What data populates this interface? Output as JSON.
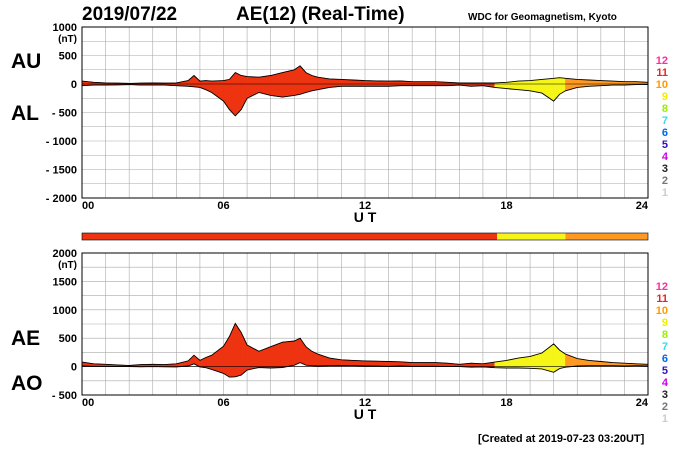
{
  "header": {
    "date": "2019/07/22",
    "title": "AE(12) (Real-Time)",
    "source": "WDC for Geomagnetism, Kyoto"
  },
  "footer": {
    "created": "[Created at 2019-07-23 03:20UT]"
  },
  "colors": {
    "index_levels": [
      "#ff2d9f",
      "#ee2222",
      "#ff9900",
      "#eeee00",
      "#99ee00",
      "#33ddee",
      "#0066ee",
      "#3311bb",
      "#cc00ee",
      "#222222",
      "#777777",
      "#cccccc"
    ],
    "fill_red": "#ee3311",
    "fill_orange": "#ff9922",
    "fill_yellow": "#f5f517",
    "grid": "#aaaaaa"
  },
  "chart_data": [
    {
      "type": "area",
      "panel": "AU/AL",
      "series_labels": [
        "AU",
        "AL"
      ],
      "unit": "(nT)",
      "xlabel": "U T",
      "xlim": [
        0,
        24
      ],
      "xticks": [
        "00",
        "06",
        "12",
        "18",
        "24"
      ],
      "ylim": [
        -2000,
        1000
      ],
      "yticks": [
        "1000",
        "500",
        "0",
        "- 500",
        "- 1000",
        "- 1500",
        "- 2000"
      ],
      "ytick_values": [
        1000,
        500,
        0,
        -500,
        -1000,
        -1500,
        -2000
      ],
      "station_count_labels": [
        "12",
        "11",
        "10",
        "9",
        "8",
        "7",
        "6",
        "5",
        "4",
        "3",
        "2",
        "1"
      ],
      "x": [
        0,
        0.5,
        1,
        1.5,
        2,
        2.5,
        3,
        3.5,
        4,
        4.5,
        4.75,
        5,
        5.25,
        5.5,
        6,
        6.25,
        6.5,
        6.75,
        7,
        7.5,
        8,
        8.5,
        9,
        9.25,
        9.5,
        9.75,
        10,
        10.5,
        11,
        11.5,
        12,
        12.5,
        13,
        13.5,
        14,
        14.5,
        15,
        15.5,
        16,
        16.5,
        17,
        17.5,
        18,
        18.5,
        19,
        19.5,
        20,
        20.25,
        20.5,
        21,
        21.5,
        22,
        22.5,
        23,
        23.5,
        24
      ],
      "AU": [
        50,
        30,
        20,
        15,
        10,
        15,
        20,
        15,
        20,
        60,
        150,
        50,
        60,
        50,
        60,
        80,
        200,
        150,
        130,
        120,
        150,
        200,
        250,
        320,
        200,
        150,
        120,
        90,
        80,
        70,
        60,
        55,
        50,
        55,
        40,
        40,
        40,
        30,
        20,
        20,
        20,
        20,
        30,
        50,
        60,
        80,
        100,
        110,
        100,
        80,
        70,
        60,
        50,
        40,
        40,
        30
      ],
      "AL": [
        -30,
        -20,
        -20,
        -15,
        -10,
        -20,
        -20,
        -20,
        -30,
        -40,
        -50,
        -60,
        -100,
        -150,
        -300,
        -450,
        -560,
        -450,
        -250,
        -150,
        -200,
        -230,
        -200,
        -180,
        -150,
        -120,
        -100,
        -60,
        -40,
        -40,
        -40,
        -40,
        -40,
        -30,
        -30,
        -30,
        -30,
        -30,
        -20,
        -40,
        -30,
        -60,
        -80,
        -100,
        -120,
        -160,
        -300,
        -180,
        -120,
        -60,
        -40,
        -30,
        -20,
        -20,
        -10,
        -10
      ]
    },
    {
      "type": "area",
      "panel": "AE/AO",
      "series_labels": [
        "AE",
        "AO"
      ],
      "unit": "(nT)",
      "xlabel": "U T",
      "xlim": [
        0,
        24
      ],
      "xticks": [
        "00",
        "06",
        "12",
        "18",
        "24"
      ],
      "ylim": [
        -500,
        2000
      ],
      "yticks": [
        "2000",
        "1500",
        "1000",
        "500",
        "0",
        "- 500"
      ],
      "ytick_values": [
        2000,
        1500,
        1000,
        500,
        0,
        -500
      ],
      "station_count_labels": [
        "12",
        "11",
        "10",
        "9",
        "8",
        "7",
        "6",
        "5",
        "4",
        "3",
        "2",
        "1"
      ],
      "x": [
        0,
        0.5,
        1,
        1.5,
        2,
        2.5,
        3,
        3.5,
        4,
        4.5,
        4.75,
        5,
        5.25,
        5.5,
        6,
        6.25,
        6.5,
        6.75,
        7,
        7.5,
        8,
        8.5,
        9,
        9.25,
        9.5,
        9.75,
        10,
        10.5,
        11,
        11.5,
        12,
        12.5,
        13,
        13.5,
        14,
        14.5,
        15,
        15.5,
        16,
        16.5,
        17,
        17.5,
        18,
        18.5,
        19,
        19.5,
        20,
        20.25,
        20.5,
        21,
        21.5,
        22,
        22.5,
        23,
        23.5,
        24
      ],
      "AE": [
        80,
        50,
        40,
        30,
        20,
        35,
        40,
        35,
        50,
        100,
        200,
        110,
        160,
        200,
        360,
        530,
        760,
        600,
        380,
        270,
        350,
        430,
        450,
        500,
        350,
        270,
        220,
        150,
        120,
        110,
        100,
        95,
        90,
        85,
        70,
        70,
        70,
        60,
        40,
        60,
        50,
        80,
        110,
        150,
        180,
        240,
        400,
        290,
        220,
        140,
        110,
        90,
        70,
        60,
        50,
        40
      ],
      "AO": [
        10,
        5,
        0,
        0,
        0,
        -3,
        0,
        -3,
        -5,
        10,
        50,
        -5,
        -20,
        -50,
        -120,
        -185,
        -180,
        -150,
        -60,
        -15,
        -25,
        -15,
        25,
        70,
        25,
        15,
        10,
        15,
        20,
        15,
        10,
        8,
        5,
        13,
        5,
        5,
        5,
        0,
        0,
        -10,
        -5,
        -20,
        -25,
        -25,
        -30,
        -40,
        -100,
        -35,
        -10,
        10,
        15,
        15,
        15,
        10,
        15,
        10
      ]
    }
  ],
  "status_bar": {
    "segments": [
      {
        "from": 0,
        "to": 17.6,
        "level": "red"
      },
      {
        "from": 17.6,
        "to": 20.5,
        "level": "yellow"
      },
      {
        "from": 20.5,
        "to": 24,
        "level": "orange"
      }
    ]
  }
}
